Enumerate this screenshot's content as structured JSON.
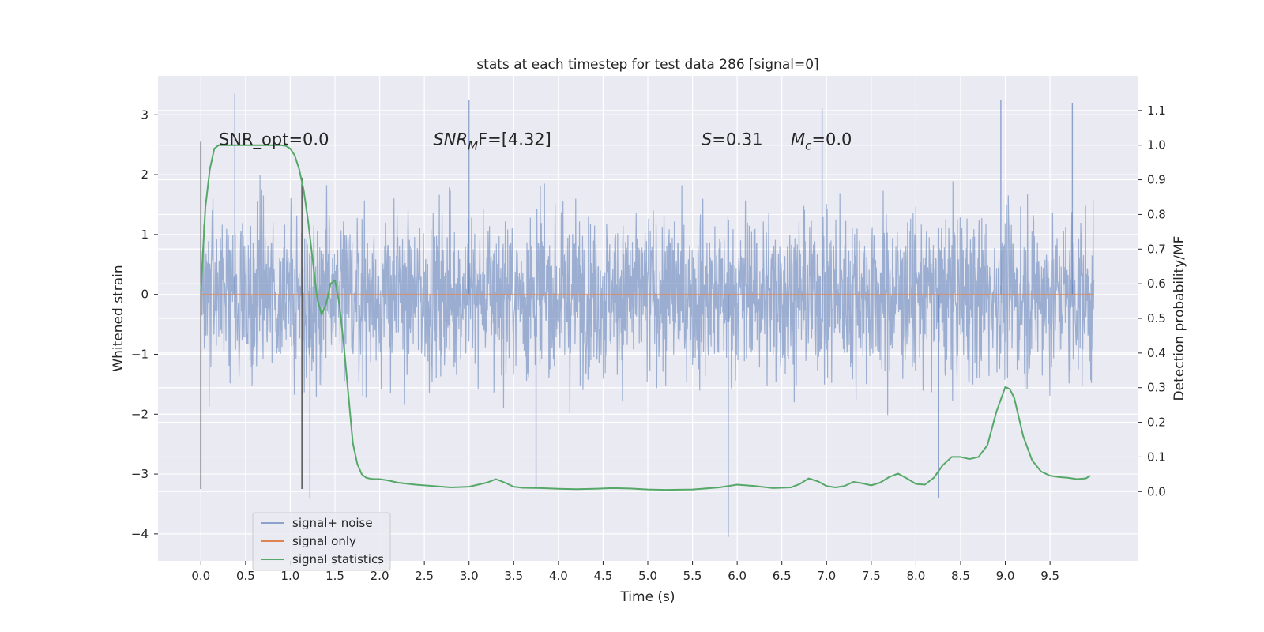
{
  "chart_data": {
    "type": "line",
    "title": "stats at each timestep for test data 286 [signal=0]",
    "xlabel": "Time (s)",
    "ylabel": "Whitened strain",
    "y2label": "Detection probability/MF",
    "xlim": [
      -0.48,
      10.48
    ],
    "ylim": [
      -4.45,
      3.65
    ],
    "y2lim": [
      -0.2,
      1.2
    ],
    "x_ticks": [
      0.0,
      0.5,
      1.0,
      1.5,
      2.0,
      2.5,
      3.0,
      3.5,
      4.0,
      4.5,
      5.0,
      5.5,
      6.0,
      6.5,
      7.0,
      7.5,
      8.0,
      8.5,
      9.0,
      9.5
    ],
    "x_tick_labels": [
      "0.0",
      "0.5",
      "1.0",
      "1.5",
      "2.0",
      "2.5",
      "3.0",
      "3.5",
      "4.0",
      "4.5",
      "5.0",
      "5.5",
      "6.0",
      "6.5",
      "7.0",
      "7.5",
      "8.0",
      "8.5",
      "9.0",
      "9.5"
    ],
    "y_ticks": [
      -4,
      -3,
      -2,
      -1,
      0,
      1,
      2,
      3
    ],
    "y_tick_labels": [
      "−4",
      "−3",
      "−2",
      "−1",
      "0",
      "1",
      "2",
      "3"
    ],
    "y2_ticks": [
      0.0,
      0.1,
      0.2,
      0.3,
      0.4,
      0.5,
      0.6,
      0.7,
      0.8,
      0.9,
      1.0,
      1.1
    ],
    "y2_tick_labels": [
      "0.0",
      "0.1",
      "0.2",
      "0.3",
      "0.4",
      "0.5",
      "0.6",
      "0.7",
      "0.8",
      "0.9",
      "1.0",
      "1.1"
    ],
    "grid": true,
    "legend_position": "lower-left",
    "background": "#eaeaf2",
    "series": [
      {
        "name": "signal+ noise",
        "color": "#4c72b0",
        "axis": "left",
        "kind": "noise",
        "x_range": [
          0.0,
          9.99
        ],
        "typical_band": [
          -1.6,
          1.6
        ],
        "peak_values": [
          {
            "x": 0.38,
            "y": 3.35
          },
          {
            "x": 1.22,
            "y": -3.4
          },
          {
            "x": 3.0,
            "y": 3.25
          },
          {
            "x": 3.75,
            "y": -3.25
          },
          {
            "x": 5.9,
            "y": -4.05
          },
          {
            "x": 6.95,
            "y": 3.1
          },
          {
            "x": 8.25,
            "y": -3.4
          },
          {
            "x": 8.95,
            "y": 3.25
          },
          {
            "x": 9.75,
            "y": 3.2
          }
        ]
      },
      {
        "name": "signal only",
        "color": "#dd8452",
        "axis": "left",
        "x": [
          0.0,
          9.99
        ],
        "y": [
          0.0,
          0.0
        ]
      },
      {
        "name": "signal statistics",
        "color": "#55a868",
        "axis": "right",
        "x": [
          0.0,
          0.05,
          0.1,
          0.15,
          0.2,
          0.3,
          0.4,
          0.5,
          0.6,
          0.7,
          0.8,
          0.9,
          0.95,
          1.0,
          1.05,
          1.1,
          1.15,
          1.2,
          1.25,
          1.3,
          1.35,
          1.4,
          1.45,
          1.5,
          1.55,
          1.6,
          1.65,
          1.7,
          1.75,
          1.8,
          1.85,
          1.9,
          1.95,
          2.0,
          2.1,
          2.2,
          2.4,
          2.6,
          2.8,
          3.0,
          3.2,
          3.3,
          3.4,
          3.5,
          3.6,
          3.8,
          4.0,
          4.2,
          4.4,
          4.6,
          4.8,
          5.0,
          5.2,
          5.5,
          5.8,
          6.0,
          6.2,
          6.4,
          6.6,
          6.7,
          6.8,
          6.9,
          7.0,
          7.1,
          7.2,
          7.3,
          7.4,
          7.5,
          7.6,
          7.7,
          7.8,
          7.9,
          8.0,
          8.1,
          8.2,
          8.3,
          8.4,
          8.5,
          8.6,
          8.7,
          8.8,
          8.9,
          9.0,
          9.05,
          9.1,
          9.2,
          9.3,
          9.4,
          9.5,
          9.6,
          9.7,
          9.8,
          9.9,
          9.95
        ],
        "y": [
          0.58,
          0.82,
          0.93,
          0.99,
          1.0,
          1.0,
          1.0,
          1.0,
          1.0,
          1.0,
          1.0,
          1.0,
          0.998,
          0.99,
          0.97,
          0.93,
          0.87,
          0.78,
          0.67,
          0.56,
          0.51,
          0.54,
          0.6,
          0.61,
          0.54,
          0.42,
          0.28,
          0.14,
          0.08,
          0.05,
          0.04,
          0.037,
          0.036,
          0.036,
          0.032,
          0.026,
          0.02,
          0.016,
          0.012,
          0.014,
          0.026,
          0.036,
          0.026,
          0.014,
          0.011,
          0.01,
          0.008,
          0.007,
          0.008,
          0.01,
          0.009,
          0.006,
          0.005,
          0.006,
          0.012,
          0.02,
          0.016,
          0.01,
          0.012,
          0.022,
          0.038,
          0.03,
          0.016,
          0.012,
          0.016,
          0.028,
          0.024,
          0.018,
          0.026,
          0.042,
          0.052,
          0.038,
          0.022,
          0.02,
          0.04,
          0.076,
          0.1,
          0.1,
          0.094,
          0.1,
          0.134,
          0.23,
          0.302,
          0.296,
          0.27,
          0.16,
          0.09,
          0.058,
          0.046,
          0.042,
          0.04,
          0.036,
          0.038,
          0.046
        ]
      }
    ],
    "vertical_lines": [
      {
        "x": 0.0,
        "y_from": -3.25,
        "y_to": 2.55,
        "color": "#555555"
      },
      {
        "x": 1.13,
        "y_from": -3.25,
        "y_to": 1.95,
        "color": "#555555"
      }
    ],
    "annotations": [
      {
        "text": "SNR_opt=0.0",
        "x": 0.2,
        "y": 2.55,
        "math": false
      },
      {
        "base": "SNR",
        "sub": "M",
        "rest": "F=[4.32]",
        "x": 2.6,
        "y": 2.55,
        "math": true
      },
      {
        "base": "S",
        "sub": "",
        "rest": "=0.31",
        "x": 5.6,
        "y": 2.55,
        "math": true
      },
      {
        "base": "M",
        "sub": "c",
        "rest": "=0.0",
        "x": 6.6,
        "y": 2.55,
        "math": true
      }
    ]
  }
}
